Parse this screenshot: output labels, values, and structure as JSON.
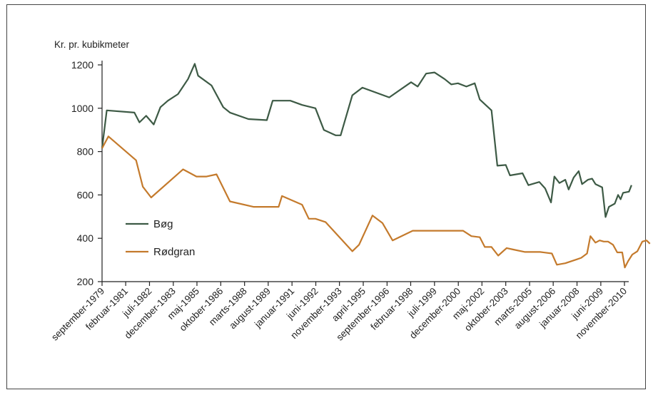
{
  "chart_data": {
    "type": "line",
    "title": "",
    "ylabel": "Kr. pr. kubikmeter",
    "xlabel": "",
    "ylim": [
      200,
      1200
    ],
    "yticks": [
      200,
      400,
      600,
      800,
      1000,
      1200
    ],
    "xlim": [
      1979.67,
      2010.83
    ],
    "grid": false,
    "legend_position": "left-center",
    "x_tick_labels": [
      {
        "label": "september-1979",
        "x": 1979.67
      },
      {
        "label": "februar-1981",
        "x": 1981.08
      },
      {
        "label": "juli-1982",
        "x": 1982.5
      },
      {
        "label": "december-1983",
        "x": 1983.92
      },
      {
        "label": "maj-1985",
        "x": 1985.33
      },
      {
        "label": "oktober-1986",
        "x": 1986.75
      },
      {
        "label": "marts-1988",
        "x": 1988.17
      },
      {
        "label": "august-1989",
        "x": 1989.58
      },
      {
        "label": "januar-1991",
        "x": 1991.0
      },
      {
        "label": "juni-1992",
        "x": 1992.42
      },
      {
        "label": "november-1993",
        "x": 1993.83
      },
      {
        "label": "april-1995",
        "x": 1995.25
      },
      {
        "label": "september-1996",
        "x": 1996.67
      },
      {
        "label": "februar-1998",
        "x": 1998.08
      },
      {
        "label": "juli-1999",
        "x": 1999.5
      },
      {
        "label": "december-2000",
        "x": 2000.92
      },
      {
        "label": "maj-2002",
        "x": 2002.33
      },
      {
        "label": "oktober-2003",
        "x": 2003.75
      },
      {
        "label": "marts-2005",
        "x": 2005.17
      },
      {
        "label": "august-2006",
        "x": 2006.58
      },
      {
        "label": "januar-2008",
        "x": 2008.0
      },
      {
        "label": "juni-2009",
        "x": 2009.42
      },
      {
        "label": "november-2010",
        "x": 2010.83
      }
    ],
    "series": [
      {
        "name": "Bøg",
        "color": "#3d5a45",
        "points": [
          [
            1979.67,
            815
          ],
          [
            1979.95,
            990
          ],
          [
            1981.6,
            980
          ],
          [
            1981.9,
            935
          ],
          [
            1982.3,
            965
          ],
          [
            1982.75,
            925
          ],
          [
            1983.15,
            1005
          ],
          [
            1983.6,
            1035
          ],
          [
            1984.2,
            1065
          ],
          [
            1984.8,
            1135
          ],
          [
            1985.2,
            1205
          ],
          [
            1985.4,
            1150
          ],
          [
            1986.2,
            1105
          ],
          [
            1986.9,
            1005
          ],
          [
            1987.3,
            980
          ],
          [
            1988.4,
            950
          ],
          [
            1989.5,
            945
          ],
          [
            1989.85,
            1035
          ],
          [
            1990.9,
            1035
          ],
          [
            1991.6,
            1015
          ],
          [
            1992.4,
            1000
          ],
          [
            1992.9,
            900
          ],
          [
            1993.6,
            875
          ],
          [
            1993.9,
            875
          ],
          [
            1994.6,
            1060
          ],
          [
            1995.2,
            1095
          ],
          [
            1996.8,
            1050
          ],
          [
            1998.1,
            1120
          ],
          [
            1998.5,
            1100
          ],
          [
            1999.0,
            1160
          ],
          [
            1999.5,
            1165
          ],
          [
            2000.1,
            1135
          ],
          [
            2000.5,
            1110
          ],
          [
            2000.9,
            1115
          ],
          [
            2001.4,
            1100
          ],
          [
            2001.9,
            1115
          ],
          [
            2002.2,
            1040
          ],
          [
            2002.9,
            990
          ],
          [
            2003.25,
            735
          ],
          [
            2003.75,
            738
          ],
          [
            2004.0,
            690
          ],
          [
            2004.75,
            700
          ],
          [
            2005.1,
            645
          ],
          [
            2005.75,
            660
          ],
          [
            2006.1,
            630
          ],
          [
            2006.45,
            565
          ],
          [
            2006.65,
            685
          ],
          [
            2006.95,
            655
          ],
          [
            2007.3,
            670
          ],
          [
            2007.5,
            625
          ],
          [
            2007.8,
            680
          ],
          [
            2008.1,
            710
          ],
          [
            2008.3,
            650
          ],
          [
            2008.65,
            670
          ],
          [
            2008.9,
            675
          ],
          [
            2009.1,
            650
          ],
          [
            2009.5,
            635
          ],
          [
            2009.7,
            498
          ],
          [
            2009.9,
            545
          ],
          [
            2010.25,
            560
          ],
          [
            2010.45,
            600
          ],
          [
            2010.6,
            580
          ],
          [
            2010.75,
            610
          ],
          [
            2011.1,
            615
          ],
          [
            2011.25,
            645
          ]
        ]
      },
      {
        "name": "Rødgran",
        "color": "#c47a2c",
        "points": [
          [
            1979.67,
            815
          ],
          [
            1980.05,
            870
          ],
          [
            1981.7,
            760
          ],
          [
            1982.1,
            638
          ],
          [
            1982.6,
            588
          ],
          [
            1984.5,
            718
          ],
          [
            1985.3,
            685
          ],
          [
            1985.9,
            685
          ],
          [
            1986.5,
            695
          ],
          [
            1987.3,
            570
          ],
          [
            1988.7,
            545
          ],
          [
            1990.2,
            545
          ],
          [
            1990.4,
            595
          ],
          [
            1991.6,
            555
          ],
          [
            1992.0,
            490
          ],
          [
            1992.4,
            490
          ],
          [
            1993.0,
            475
          ],
          [
            1994.6,
            340
          ],
          [
            1995.0,
            370
          ],
          [
            1995.8,
            505
          ],
          [
            1996.4,
            470
          ],
          [
            1997.0,
            390
          ],
          [
            1998.2,
            435
          ],
          [
            2000.3,
            435
          ],
          [
            2001.2,
            435
          ],
          [
            2001.7,
            410
          ],
          [
            2002.2,
            405
          ],
          [
            2002.5,
            360
          ],
          [
            2002.9,
            360
          ],
          [
            2003.3,
            320
          ],
          [
            2003.8,
            355
          ],
          [
            2004.2,
            348
          ],
          [
            2004.9,
            337
          ],
          [
            2005.8,
            337
          ],
          [
            2006.5,
            330
          ],
          [
            2006.8,
            278
          ],
          [
            2007.3,
            285
          ],
          [
            2008.0,
            303
          ],
          [
            2008.25,
            310
          ],
          [
            2008.6,
            330
          ],
          [
            2008.8,
            410
          ],
          [
            2009.1,
            380
          ],
          [
            2009.35,
            390
          ],
          [
            2009.6,
            385
          ],
          [
            2009.85,
            385
          ],
          [
            2010.15,
            370
          ],
          [
            2010.4,
            335
          ],
          [
            2010.7,
            335
          ],
          [
            2010.85,
            265
          ],
          [
            2011.05,
            295
          ],
          [
            2011.3,
            325
          ],
          [
            2011.6,
            340
          ],
          [
            2011.9,
            385
          ],
          [
            2012.15,
            390
          ],
          [
            2012.35,
            375
          ]
        ]
      }
    ]
  }
}
